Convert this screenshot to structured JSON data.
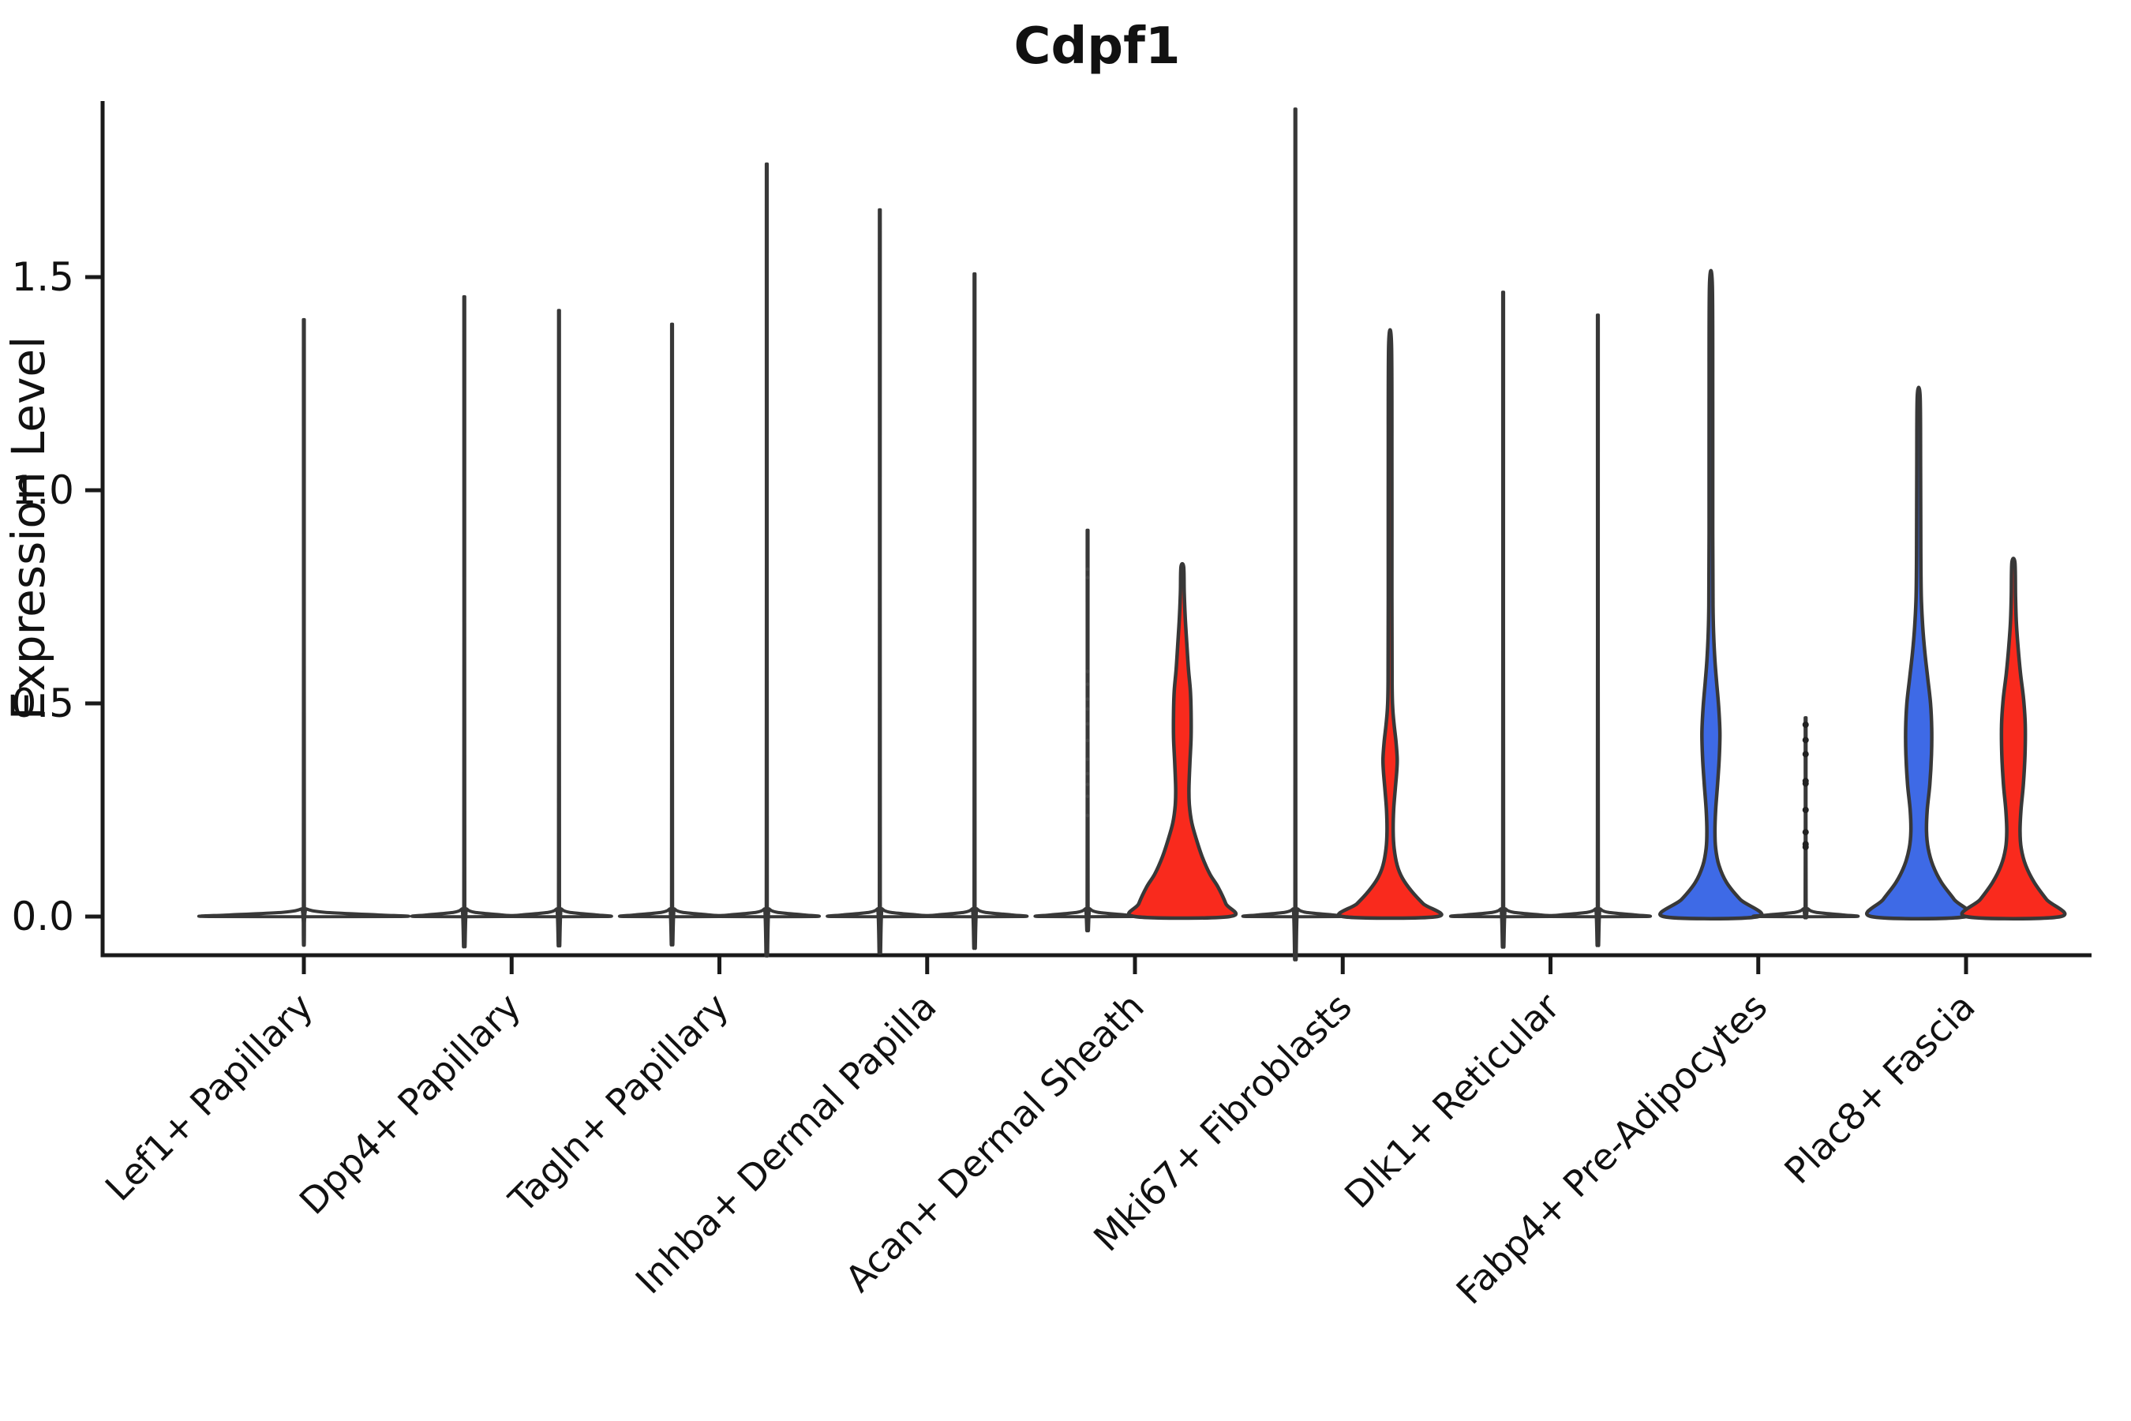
{
  "chart_data": {
    "type": "violin",
    "title": "Cdpf1",
    "ylabel": "Expression Level",
    "xlabel": "",
    "ylim": [
      -0.09,
      1.91
    ],
    "yticks": [
      0.0,
      0.5,
      1.0,
      1.5
    ],
    "ytick_labels": [
      "0.0",
      "0.5",
      "1.0",
      "1.5"
    ],
    "grid": false,
    "legend": "none",
    "colors": {
      "blue": "#3E6AE6",
      "red": "#F92A1D",
      "outline": "#383838",
      "axis": "#1a1a1a"
    },
    "categories": [
      "Lef1+ Papillary",
      "Dpp4+ Papillary",
      "Tagln+ Papillary",
      "Inhba+ Dermal Papilla",
      "Acan+ Dermal Sheath",
      "Mki67+ Fibroblasts",
      "Dlk1+ Reticular",
      "Fabp4+ Pre-Adipocytes",
      "Plac8+ Fascia"
    ],
    "violins": [
      {
        "category_index": 0,
        "side": "center",
        "fill": "none",
        "kind": "spike",
        "max": 1.32,
        "base_halfwidth": 2.0,
        "points": []
      },
      {
        "category_index": 1,
        "side": "left",
        "fill": "none",
        "kind": "spike",
        "max": 1.37,
        "base_halfwidth": 1.0,
        "points": []
      },
      {
        "category_index": 1,
        "side": "right",
        "fill": "none",
        "kind": "spike",
        "max": 1.34,
        "base_halfwidth": 1.0,
        "points": []
      },
      {
        "category_index": 2,
        "side": "left",
        "fill": "none",
        "kind": "spike",
        "max": 1.31,
        "base_halfwidth": 1.0,
        "points": []
      },
      {
        "category_index": 2,
        "side": "right",
        "fill": "none",
        "kind": "spike",
        "max": 1.66,
        "base_halfwidth": 1.0,
        "points": []
      },
      {
        "category_index": 3,
        "side": "left",
        "fill": "none",
        "kind": "spike",
        "max": 1.56,
        "base_halfwidth": 1.0,
        "points": []
      },
      {
        "category_index": 3,
        "side": "right",
        "fill": "none",
        "kind": "spike",
        "max": 1.42,
        "base_halfwidth": 1.0,
        "points": []
      },
      {
        "category_index": 4,
        "side": "left",
        "fill": "none",
        "kind": "spike",
        "max": 0.86,
        "base_halfwidth": 1.0,
        "points": [
          0.815,
          0.795,
          0.575,
          0.545,
          0.51,
          0.487,
          0.452,
          0.413,
          0.369,
          0.335,
          0.31,
          0.282,
          0.237
        ],
        "points_faint": true
      },
      {
        "category_index": 4,
        "side": "right",
        "fill": "red",
        "kind": "density",
        "max": 0.82,
        "points": [],
        "profile": [
          [
            0,
            1.0
          ],
          [
            0.03,
            0.92
          ],
          [
            0.07,
            0.75
          ],
          [
            0.1,
            0.58
          ],
          [
            0.14,
            0.42
          ],
          [
            0.18,
            0.3
          ],
          [
            0.22,
            0.2
          ],
          [
            0.26,
            0.15
          ],
          [
            0.3,
            0.14
          ],
          [
            0.36,
            0.16
          ],
          [
            0.42,
            0.185
          ],
          [
            0.48,
            0.185
          ],
          [
            0.53,
            0.17
          ],
          [
            0.58,
            0.13
          ],
          [
            0.64,
            0.095
          ],
          [
            0.7,
            0.062
          ],
          [
            0.76,
            0.04
          ],
          [
            0.82,
            0.028
          ]
        ]
      },
      {
        "category_index": 5,
        "side": "left",
        "fill": "none",
        "kind": "spike",
        "max": 1.78,
        "base_halfwidth": 1.0,
        "points": []
      },
      {
        "category_index": 5,
        "side": "right",
        "fill": "red",
        "kind": "density",
        "max": 1.34,
        "points": [],
        "profile": [
          [
            0,
            1.0
          ],
          [
            0.03,
            0.7
          ],
          [
            0.06,
            0.45
          ],
          [
            0.09,
            0.26
          ],
          [
            0.12,
            0.15
          ],
          [
            0.16,
            0.085
          ],
          [
            0.2,
            0.065
          ],
          [
            0.25,
            0.075
          ],
          [
            0.3,
            0.11
          ],
          [
            0.34,
            0.14
          ],
          [
            0.37,
            0.15
          ],
          [
            0.41,
            0.125
          ],
          [
            0.45,
            0.085
          ],
          [
            0.49,
            0.055
          ],
          [
            0.55,
            0.042
          ],
          [
            0.75,
            0.038
          ],
          [
            1.05,
            0.038
          ],
          [
            1.34,
            0.03
          ]
        ]
      },
      {
        "category_index": 6,
        "side": "left",
        "fill": "none",
        "kind": "spike",
        "max": 1.38,
        "base_halfwidth": 1.0,
        "points": []
      },
      {
        "category_index": 6,
        "side": "right",
        "fill": "none",
        "kind": "spike",
        "max": 1.33,
        "base_halfwidth": 1.0,
        "points": []
      },
      {
        "category_index": 7,
        "side": "left",
        "fill": "blue",
        "kind": "density",
        "max": 1.48,
        "points": [],
        "profile": [
          [
            0,
            1.0
          ],
          [
            0.04,
            0.62
          ],
          [
            0.08,
            0.33
          ],
          [
            0.12,
            0.17
          ],
          [
            0.16,
            0.1
          ],
          [
            0.2,
            0.085
          ],
          [
            0.25,
            0.1
          ],
          [
            0.31,
            0.14
          ],
          [
            0.37,
            0.175
          ],
          [
            0.43,
            0.19
          ],
          [
            0.49,
            0.165
          ],
          [
            0.55,
            0.12
          ],
          [
            0.6,
            0.085
          ],
          [
            0.66,
            0.058
          ],
          [
            0.73,
            0.044
          ],
          [
            0.9,
            0.038
          ],
          [
            1.2,
            0.038
          ],
          [
            1.48,
            0.03
          ]
        ]
      },
      {
        "category_index": 7,
        "side": "right",
        "fill": "none",
        "kind": "spike",
        "max": 0.45,
        "base_halfwidth": 1.0,
        "points": [
          0.45,
          0.414,
          0.381,
          0.318,
          0.312,
          0.25,
          0.198,
          0.17,
          0.163
        ],
        "points_faint": false
      },
      {
        "category_index": 8,
        "side": "left",
        "fill": "blue",
        "kind": "density",
        "max": 1.22,
        "points": [],
        "profile": [
          [
            0,
            1.0
          ],
          [
            0.04,
            0.75
          ],
          [
            0.08,
            0.48
          ],
          [
            0.12,
            0.3
          ],
          [
            0.16,
            0.2
          ],
          [
            0.2,
            0.165
          ],
          [
            0.25,
            0.18
          ],
          [
            0.31,
            0.235
          ],
          [
            0.38,
            0.27
          ],
          [
            0.44,
            0.275
          ],
          [
            0.5,
            0.25
          ],
          [
            0.56,
            0.19
          ],
          [
            0.62,
            0.13
          ],
          [
            0.68,
            0.085
          ],
          [
            0.75,
            0.055
          ],
          [
            0.85,
            0.045
          ],
          [
            1.05,
            0.04
          ],
          [
            1.22,
            0.03
          ]
        ]
      },
      {
        "category_index": 8,
        "side": "right",
        "fill": "red",
        "kind": "density",
        "max": 0.83,
        "points": [],
        "profile": [
          [
            0,
            1.0
          ],
          [
            0.04,
            0.7
          ],
          [
            0.08,
            0.44
          ],
          [
            0.12,
            0.26
          ],
          [
            0.16,
            0.165
          ],
          [
            0.2,
            0.14
          ],
          [
            0.25,
            0.16
          ],
          [
            0.31,
            0.21
          ],
          [
            0.38,
            0.245
          ],
          [
            0.45,
            0.25
          ],
          [
            0.51,
            0.215
          ],
          [
            0.57,
            0.15
          ],
          [
            0.63,
            0.1
          ],
          [
            0.69,
            0.062
          ],
          [
            0.75,
            0.045
          ],
          [
            0.83,
            0.032
          ]
        ]
      }
    ]
  }
}
